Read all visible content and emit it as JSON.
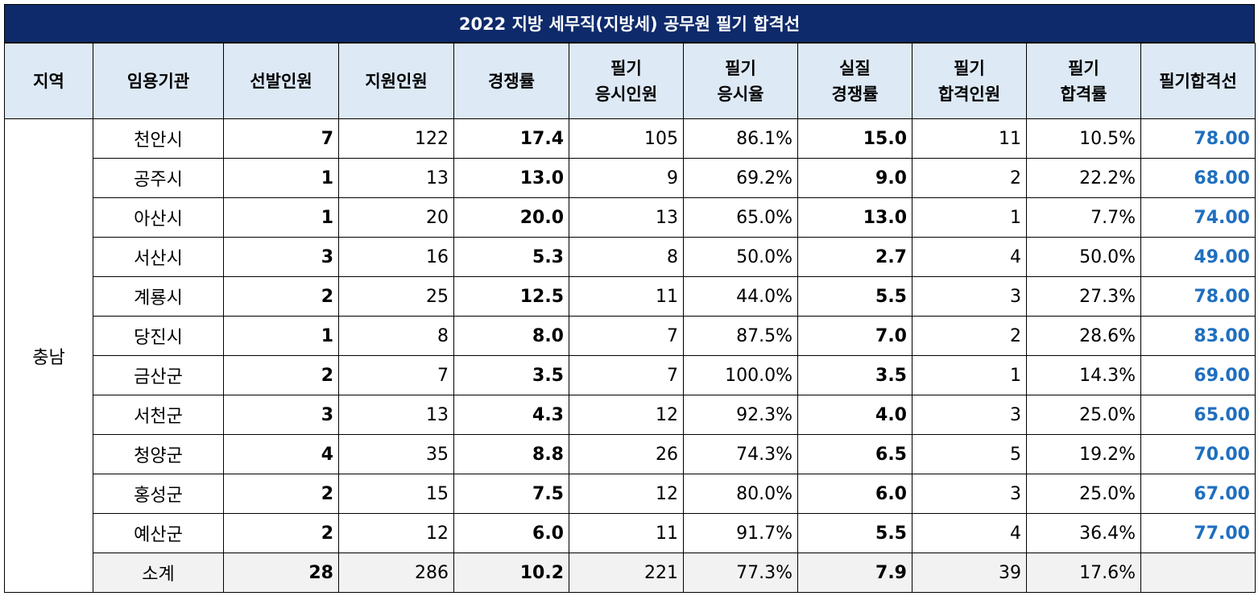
{
  "title": "2022 지방 세무직(지방세) 공무원 필기 합격선",
  "headers": [
    [
      "지역"
    ],
    [
      "임용기관"
    ],
    [
      "선발인원"
    ],
    [
      "지원인원"
    ],
    [
      "경쟁률"
    ],
    [
      "필기",
      "응시인원"
    ],
    [
      "필기",
      "응시율"
    ],
    [
      "실질",
      "경쟁률"
    ],
    [
      "필기",
      "합격인원"
    ],
    [
      "필기",
      "합격률"
    ],
    [
      "필기합격선"
    ]
  ],
  "region": "충남",
  "rows": [
    {
      "agency": "천안시",
      "selected": "7",
      "applied": "122",
      "ratio": "17.4",
      "exam_takers": "105",
      "exam_rate": "86.1%",
      "real_ratio": "15.0",
      "passed": "11",
      "pass_rate": "10.5%",
      "cutoff": "78.00"
    },
    {
      "agency": "공주시",
      "selected": "1",
      "applied": "13",
      "ratio": "13.0",
      "exam_takers": "9",
      "exam_rate": "69.2%",
      "real_ratio": "9.0",
      "passed": "2",
      "pass_rate": "22.2%",
      "cutoff": "68.00"
    },
    {
      "agency": "아산시",
      "selected": "1",
      "applied": "20",
      "ratio": "20.0",
      "exam_takers": "13",
      "exam_rate": "65.0%",
      "real_ratio": "13.0",
      "passed": "1",
      "pass_rate": "7.7%",
      "cutoff": "74.00"
    },
    {
      "agency": "서산시",
      "selected": "3",
      "applied": "16",
      "ratio": "5.3",
      "exam_takers": "8",
      "exam_rate": "50.0%",
      "real_ratio": "2.7",
      "passed": "4",
      "pass_rate": "50.0%",
      "cutoff": "49.00"
    },
    {
      "agency": "계룡시",
      "selected": "2",
      "applied": "25",
      "ratio": "12.5",
      "exam_takers": "11",
      "exam_rate": "44.0%",
      "real_ratio": "5.5",
      "passed": "3",
      "pass_rate": "27.3%",
      "cutoff": "78.00"
    },
    {
      "agency": "당진시",
      "selected": "1",
      "applied": "8",
      "ratio": "8.0",
      "exam_takers": "7",
      "exam_rate": "87.5%",
      "real_ratio": "7.0",
      "passed": "2",
      "pass_rate": "28.6%",
      "cutoff": "83.00"
    },
    {
      "agency": "금산군",
      "selected": "2",
      "applied": "7",
      "ratio": "3.5",
      "exam_takers": "7",
      "exam_rate": "100.0%",
      "real_ratio": "3.5",
      "passed": "1",
      "pass_rate": "14.3%",
      "cutoff": "69.00"
    },
    {
      "agency": "서천군",
      "selected": "3",
      "applied": "13",
      "ratio": "4.3",
      "exam_takers": "12",
      "exam_rate": "92.3%",
      "real_ratio": "4.0",
      "passed": "3",
      "pass_rate": "25.0%",
      "cutoff": "65.00"
    },
    {
      "agency": "청양군",
      "selected": "4",
      "applied": "35",
      "ratio": "8.8",
      "exam_takers": "26",
      "exam_rate": "74.3%",
      "real_ratio": "6.5",
      "passed": "5",
      "pass_rate": "19.2%",
      "cutoff": "70.00"
    },
    {
      "agency": "홍성군",
      "selected": "2",
      "applied": "15",
      "ratio": "7.5",
      "exam_takers": "12",
      "exam_rate": "80.0%",
      "real_ratio": "6.0",
      "passed": "3",
      "pass_rate": "25.0%",
      "cutoff": "67.00"
    },
    {
      "agency": "예산군",
      "selected": "2",
      "applied": "12",
      "ratio": "6.0",
      "exam_takers": "11",
      "exam_rate": "91.7%",
      "real_ratio": "5.5",
      "passed": "4",
      "pass_rate": "36.4%",
      "cutoff": "77.00"
    }
  ],
  "subtotal": {
    "label": "소계",
    "selected": "28",
    "applied": "286",
    "ratio": "10.2",
    "exam_takers": "221",
    "exam_rate": "77.3%",
    "real_ratio": "7.9",
    "passed": "39",
    "pass_rate": "17.6%",
    "cutoff": ""
  },
  "colors": {
    "header_bg": "#0e2a6b",
    "col_header_bg": "#dde9f5",
    "cutoff_text": "#1f6fbf",
    "subtotal_bg": "#f2f2f2"
  }
}
